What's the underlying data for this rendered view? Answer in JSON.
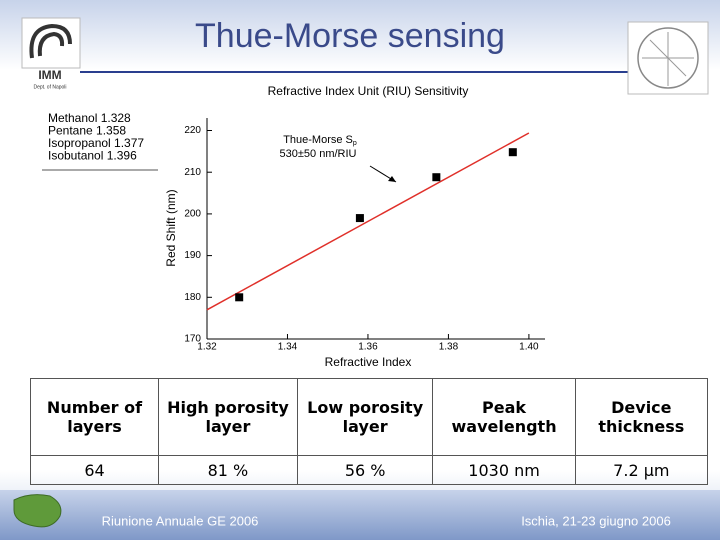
{
  "header": {
    "title": "Thue-Morse sensing",
    "logo_text": "IMM",
    "logo_subtext": "Dept. of Napoli"
  },
  "chart_data": {
    "type": "scatter",
    "title": "Refractive Index Unit (RIU) Sensitivity",
    "x_label": "Refractive Index",
    "y_label": "Red Shift (nm)",
    "x": [
      1.328,
      1.358,
      1.377,
      1.396
    ],
    "series": [
      {
        "color": "#000000",
        "values": [
          180,
          199,
          208.8,
          214.8
        ]
      }
    ],
    "point_labels": [
      "Methanol 1.328",
      "Pentane 1.358",
      "Isopropanol 1.377",
      "Isobutanol 1.396"
    ],
    "fit": {
      "color": "#e0302a",
      "x": [
        1.32,
        1.4
      ],
      "y": [
        177,
        219.4
      ],
      "label": "Thue-Morse S",
      "label_sub": "p",
      "label2": "530±50 nm/RIU"
    },
    "xlim": [
      1.32,
      1.404
    ],
    "ylim": [
      170,
      223
    ],
    "xticks": [
      1.32,
      1.34,
      1.36,
      1.38,
      {
        "value": 1.4,
        "label": "1.40"
      }
    ],
    "yticks": [
      170,
      180,
      190,
      200,
      210,
      220
    ]
  },
  "table": {
    "header": [
      "Number of layers",
      "High porosity layer",
      "Low porosity layer",
      "Peak wavelength",
      "Device thickness"
    ],
    "rows": [
      [
        "64",
        "81 %",
        "56 %",
        "1030 nm",
        "7.2 µm"
      ]
    ]
  },
  "footer": {
    "left": "Riunione Annuale GE 2006",
    "right": "Ischia, 21-23 giugno 2006"
  }
}
